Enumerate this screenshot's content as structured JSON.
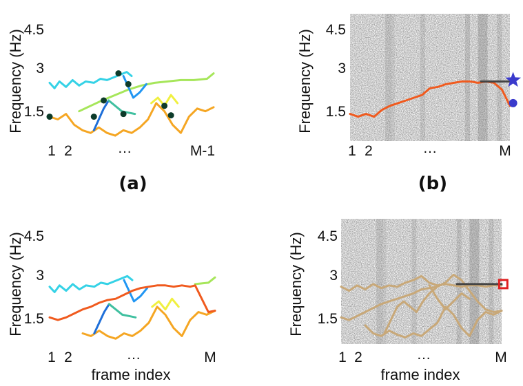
{
  "figure": {
    "panels": [
      {
        "id": "a",
        "label": "(a)",
        "ylabel": "Frequency (Hz)",
        "xlabel": "",
        "yticks": [
          "1.5",
          "3",
          "4.5"
        ],
        "xticks": [
          "1",
          "2",
          "…",
          "M-1"
        ],
        "background": "white",
        "tracks": [
          {
            "color": "#35d2e6",
            "x": [
              0,
              3,
              6,
              10,
              14,
              18,
              22,
              27,
              31,
              35,
              39,
              43,
              47,
              50
            ],
            "y": [
              2.45,
              2.25,
              2.5,
              2.3,
              2.55,
              2.35,
              2.5,
              2.45,
              2.6,
              2.55,
              2.65,
              2.75,
              2.85,
              2.7
            ]
          },
          {
            "color": "#a6e65a",
            "x": [
              18,
              25,
              32,
              40,
              48,
              56,
              64,
              72,
              80,
              88,
              96,
              100
            ],
            "y": [
              1.4,
              1.6,
              1.8,
              2.0,
              2.2,
              2.35,
              2.45,
              2.5,
              2.55,
              2.55,
              2.6,
              2.8
            ]
          },
          {
            "color": "#f5a623",
            "x": [
              0,
              5,
              10,
              15,
              20,
              25,
              30,
              35,
              40,
              45,
              50,
              55,
              60,
              65,
              70,
              75,
              80,
              85,
              90,
              95,
              100
            ],
            "y": [
              1.2,
              1.1,
              1.3,
              0.9,
              0.7,
              0.6,
              0.8,
              0.6,
              0.5,
              0.7,
              0.6,
              0.8,
              1.1,
              1.7,
              1.4,
              0.9,
              0.6,
              1.2,
              1.5,
              1.4,
              1.55
            ]
          },
          {
            "color": "#1e6fd9",
            "x": [
              27,
              30,
              33,
              36
            ],
            "y": [
              0.7,
              1.1,
              1.5,
              1.8
            ]
          },
          {
            "color": "#40c0a0",
            "x": [
              36,
              40,
              44,
              48,
              52
            ],
            "y": [
              1.8,
              1.6,
              1.4,
              1.35,
              1.3
            ]
          },
          {
            "color": "#2196f3",
            "x": [
              45,
              48,
              51,
              55,
              59
            ],
            "y": [
              2.7,
              2.3,
              1.9,
              2.1,
              2.4
            ]
          },
          {
            "color": "#f0f040",
            "x": [
              62,
              66,
              70,
              74,
              78
            ],
            "y": [
              1.7,
              1.9,
              1.6,
              2.0,
              1.7
            ]
          }
        ],
        "nodes": [
          {
            "x": 0,
            "y": 1.2
          },
          {
            "x": 27,
            "y": 1.2
          },
          {
            "x": 33,
            "y": 1.8
          },
          {
            "x": 42,
            "y": 2.8
          },
          {
            "x": 48,
            "y": 2.4
          },
          {
            "x": 45,
            "y": 1.3
          },
          {
            "x": 70,
            "y": 1.6
          },
          {
            "x": 74,
            "y": 1.25
          }
        ]
      },
      {
        "id": "b",
        "label": "(b)",
        "ylabel": "Frequency (Hz)",
        "xlabel": "",
        "yticks": [
          "1.5",
          "3",
          "4.5"
        ],
        "xticks": [
          "1",
          "2",
          "…",
          "M"
        ],
        "background": "spectrogram",
        "tracks": [
          {
            "color": "#f05a1e",
            "x": [
              0,
              5,
              10,
              15,
              20,
              25,
              30,
              35,
              40,
              45,
              50,
              55,
              60,
              65,
              70,
              75,
              80,
              85,
              90,
              95,
              100
            ],
            "y": [
              1.3,
              1.2,
              1.3,
              1.2,
              1.45,
              1.6,
              1.7,
              1.8,
              1.9,
              2.0,
              2.25,
              2.3,
              2.4,
              2.45,
              2.5,
              2.5,
              2.45,
              2.5,
              2.45,
              2.2,
              1.6
            ]
          },
          {
            "color": "#444444",
            "x": [
              82,
              100
            ],
            "y": [
              2.5,
              2.5
            ]
          }
        ],
        "markers": [
          {
            "shape": "star",
            "color": "#3a3acc",
            "x": 102,
            "y": 2.55
          },
          {
            "shape": "circle",
            "color": "#3a3acc",
            "x": 102,
            "y": 1.7
          }
        ]
      },
      {
        "id": "c",
        "label": "",
        "ylabel": "Frequency (Hz)",
        "xlabel": "frame index",
        "yticks": [
          "1.5",
          "3",
          "4.5"
        ],
        "xticks": [
          "1",
          "2",
          "…",
          "M"
        ],
        "background": "white",
        "tracks": [
          {
            "color": "#35d2e6",
            "x": [
              0,
              3,
              6,
              10,
              14,
              18,
              22,
              27,
              31,
              35,
              39,
              43,
              47,
              50
            ],
            "y": [
              2.45,
              2.25,
              2.5,
              2.3,
              2.55,
              2.35,
              2.5,
              2.45,
              2.6,
              2.55,
              2.65,
              2.75,
              2.85,
              2.7
            ]
          },
          {
            "color": "#a6e65a",
            "x": [
              88,
              96,
              100
            ],
            "y": [
              2.55,
              2.6,
              2.8
            ]
          },
          {
            "color": "#f5a623",
            "x": [
              20,
              25,
              30,
              35,
              40,
              45,
              50,
              55,
              60,
              65,
              70,
              75,
              80,
              85,
              90,
              95,
              100
            ],
            "y": [
              0.7,
              0.6,
              0.8,
              0.6,
              0.5,
              0.7,
              0.6,
              0.8,
              1.1,
              1.7,
              1.4,
              0.9,
              0.6,
              1.2,
              1.5,
              1.4,
              1.55
            ]
          },
          {
            "color": "#1e6fd9",
            "x": [
              27,
              30,
              33,
              36
            ],
            "y": [
              0.7,
              1.1,
              1.5,
              1.8
            ]
          },
          {
            "color": "#40c0a0",
            "x": [
              36,
              40,
              44,
              48,
              52
            ],
            "y": [
              1.8,
              1.6,
              1.4,
              1.35,
              1.3
            ]
          },
          {
            "color": "#2196f3",
            "x": [
              45,
              48,
              51,
              55,
              59
            ],
            "y": [
              2.7,
              2.3,
              1.9,
              2.1,
              2.4
            ]
          },
          {
            "color": "#f0f040",
            "x": [
              62,
              66,
              70,
              74,
              78
            ],
            "y": [
              1.7,
              1.9,
              1.6,
              2.0,
              1.7
            ]
          },
          {
            "color": "#f05a1e",
            "x": [
              0,
              5,
              10,
              15,
              20,
              25,
              30,
              35,
              40,
              45,
              50,
              55,
              60,
              65,
              70,
              75,
              80,
              85,
              88,
              92,
              96,
              100
            ],
            "y": [
              1.3,
              1.2,
              1.3,
              1.45,
              1.6,
              1.7,
              1.85,
              1.95,
              2.0,
              2.15,
              2.3,
              2.4,
              2.45,
              2.5,
              2.5,
              2.45,
              2.5,
              2.45,
              2.5,
              2.0,
              1.5,
              1.55
            ]
          }
        ]
      },
      {
        "id": "d",
        "label": "",
        "ylabel": "Frequency (Hz)",
        "xlabel": "frame index",
        "yticks": [
          "1.5",
          "3",
          "4.5"
        ],
        "xticks": [
          "1",
          "2",
          "…",
          "M"
        ],
        "background": "spectrogram",
        "tracks": [
          {
            "color": "#c8a878",
            "x": [
              0,
              5,
              10,
              15,
              20,
              25,
              30,
              35,
              40,
              45,
              50,
              55,
              60,
              65,
              70,
              75,
              80,
              85,
              90,
              95,
              100
            ],
            "y": [
              2.45,
              2.3,
              2.5,
              2.35,
              2.55,
              2.4,
              2.5,
              2.45,
              2.6,
              2.7,
              2.85,
              2.6,
              2.5,
              2.55,
              2.5,
              2.45,
              2.5,
              2.5,
              2.45,
              2.5,
              2.5
            ]
          },
          {
            "color": "#c8a878",
            "x": [
              0,
              5,
              10,
              15,
              20,
              25,
              30,
              35,
              40,
              45,
              50,
              55,
              60,
              65,
              70,
              75,
              80,
              85,
              90,
              95,
              100
            ],
            "y": [
              1.3,
              1.2,
              1.35,
              1.5,
              1.65,
              1.8,
              1.9,
              2.0,
              2.1,
              2.2,
              2.35,
              2.4,
              2.45,
              2.6,
              2.9,
              2.7,
              2.3,
              1.9,
              1.6,
              1.5,
              1.55
            ]
          },
          {
            "color": "#c8a878",
            "x": [
              15,
              20,
              25,
              30,
              35,
              40,
              45,
              50,
              55,
              60,
              65,
              70,
              75,
              80,
              85,
              90,
              95,
              100
            ],
            "y": [
              1.0,
              0.7,
              0.6,
              0.8,
              0.65,
              0.55,
              0.7,
              0.6,
              0.85,
              1.1,
              1.7,
              1.4,
              0.9,
              0.6,
              1.2,
              1.5,
              1.4,
              1.55
            ]
          },
          {
            "color": "#c8a878",
            "x": [
              27,
              31,
              35,
              39,
              43,
              47,
              51,
              55,
              59
            ],
            "y": [
              0.7,
              1.2,
              1.7,
              1.9,
              1.7,
              1.5,
              1.9,
              2.2,
              2.4
            ]
          },
          {
            "color": "#c8a878",
            "x": [
              55,
              60,
              65,
              70,
              75,
              80
            ],
            "y": [
              2.5,
              2.0,
              1.6,
              1.9,
              2.2,
              2.0
            ]
          },
          {
            "color": "#444444",
            "x": [
              72,
              100
            ],
            "y": [
              2.55,
              2.55
            ]
          }
        ],
        "markers": [
          {
            "shape": "square",
            "color": "#e02020",
            "x": 101,
            "y": 2.55
          }
        ]
      }
    ]
  }
}
